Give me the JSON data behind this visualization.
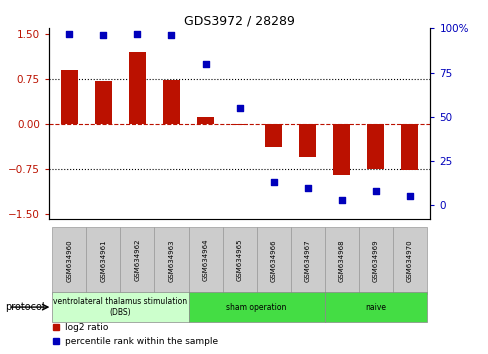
{
  "title": "GDS3972 / 28289",
  "samples": [
    "GSM634960",
    "GSM634961",
    "GSM634962",
    "GSM634963",
    "GSM634964",
    "GSM634965",
    "GSM634966",
    "GSM634967",
    "GSM634968",
    "GSM634969",
    "GSM634970"
  ],
  "log2_ratio": [
    0.9,
    0.72,
    1.2,
    0.73,
    0.12,
    -0.02,
    -0.38,
    -0.55,
    -0.85,
    -0.75,
    -0.78
  ],
  "percentile_rank": [
    97,
    96,
    97,
    96,
    80,
    55,
    13,
    10,
    3,
    8,
    5
  ],
  "bar_color": "#bb1100",
  "dot_color": "#0000bb",
  "ylim_left": [
    -1.6,
    1.6
  ],
  "ylim_right": [
    -8,
    100
  ],
  "yticks_left": [
    -1.5,
    -0.75,
    0.0,
    0.75,
    1.5
  ],
  "yticks_right": [
    0,
    25,
    50,
    75,
    100
  ],
  "hlines_dotted": [
    -0.75,
    0.75
  ],
  "hline_dashed": 0.0,
  "protocol_groups": [
    {
      "label": "ventrolateral thalamus stimulation\n(DBS)",
      "start": 0,
      "end": 3,
      "color": "#ccffcc"
    },
    {
      "label": "sham operation",
      "start": 4,
      "end": 7,
      "color": "#44dd44"
    },
    {
      "label": "naive",
      "start": 8,
      "end": 10,
      "color": "#44dd44"
    }
  ],
  "legend_bar_label": "log2 ratio",
  "legend_dot_label": "percentile rank within the sample",
  "protocol_label": "protocol"
}
